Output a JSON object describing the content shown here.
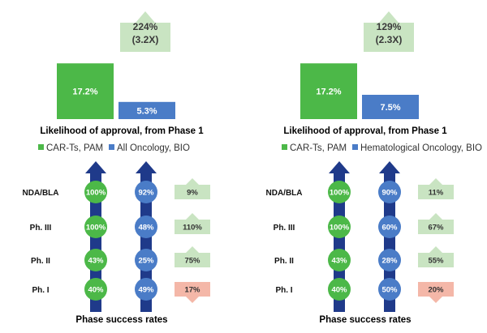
{
  "colors": {
    "green": "#4cb848",
    "blue": "#4a7cc7",
    "arrow": "#1f3a8a",
    "box_up": "#c9e4c2",
    "box_down": "#f4b7a8",
    "callout": "#c9e4c2"
  },
  "chart_data": [
    {
      "type": "bar",
      "title": "Likelihood of approval, from Phase 1",
      "callout": {
        "line1": "224%",
        "line2": "(3.2X)"
      },
      "categories": [
        "CAR-Ts, PAM",
        "All Oncology, BIO"
      ],
      "values": [
        17.2,
        5.3
      ],
      "value_labels": [
        "17.2%",
        "5.3%"
      ],
      "ylim": [
        0,
        20
      ],
      "legend": [
        "CAR-Ts, PAM",
        "All Oncology, BIO"
      ],
      "phases": {
        "title": "Phase success rates",
        "stages": [
          "NDA/BLA",
          "Ph. III",
          "Ph. II",
          "Ph. I"
        ],
        "car_t": [
          "100%",
          "100%",
          "43%",
          "40%"
        ],
        "comparator": [
          "92%",
          "48%",
          "25%",
          "49%"
        ],
        "diff": [
          "9%",
          "110%",
          "75%",
          "17%"
        ],
        "direction": [
          "up",
          "up",
          "up",
          "down"
        ]
      }
    },
    {
      "type": "bar",
      "title": "Likelihood of approval, from Phase 1",
      "callout": {
        "line1": "129%",
        "line2": "(2.3X)"
      },
      "categories": [
        "CAR-Ts, PAM",
        "Hematological Oncology, BIO"
      ],
      "values": [
        17.2,
        7.5
      ],
      "value_labels": [
        "17.2%",
        "7.5%"
      ],
      "ylim": [
        0,
        20
      ],
      "legend": [
        "CAR-Ts, PAM",
        "Hematological Oncology, BIO"
      ],
      "phases": {
        "title": "Phase success rates",
        "stages": [
          "NDA/BLA",
          "Ph. III",
          "Ph. II",
          "Ph. I"
        ],
        "car_t": [
          "100%",
          "100%",
          "43%",
          "40%"
        ],
        "comparator": [
          "90%",
          "60%",
          "28%",
          "50%"
        ],
        "diff": [
          "11%",
          "67%",
          "55%",
          "20%"
        ],
        "direction": [
          "up",
          "up",
          "up",
          "down"
        ]
      }
    }
  ]
}
